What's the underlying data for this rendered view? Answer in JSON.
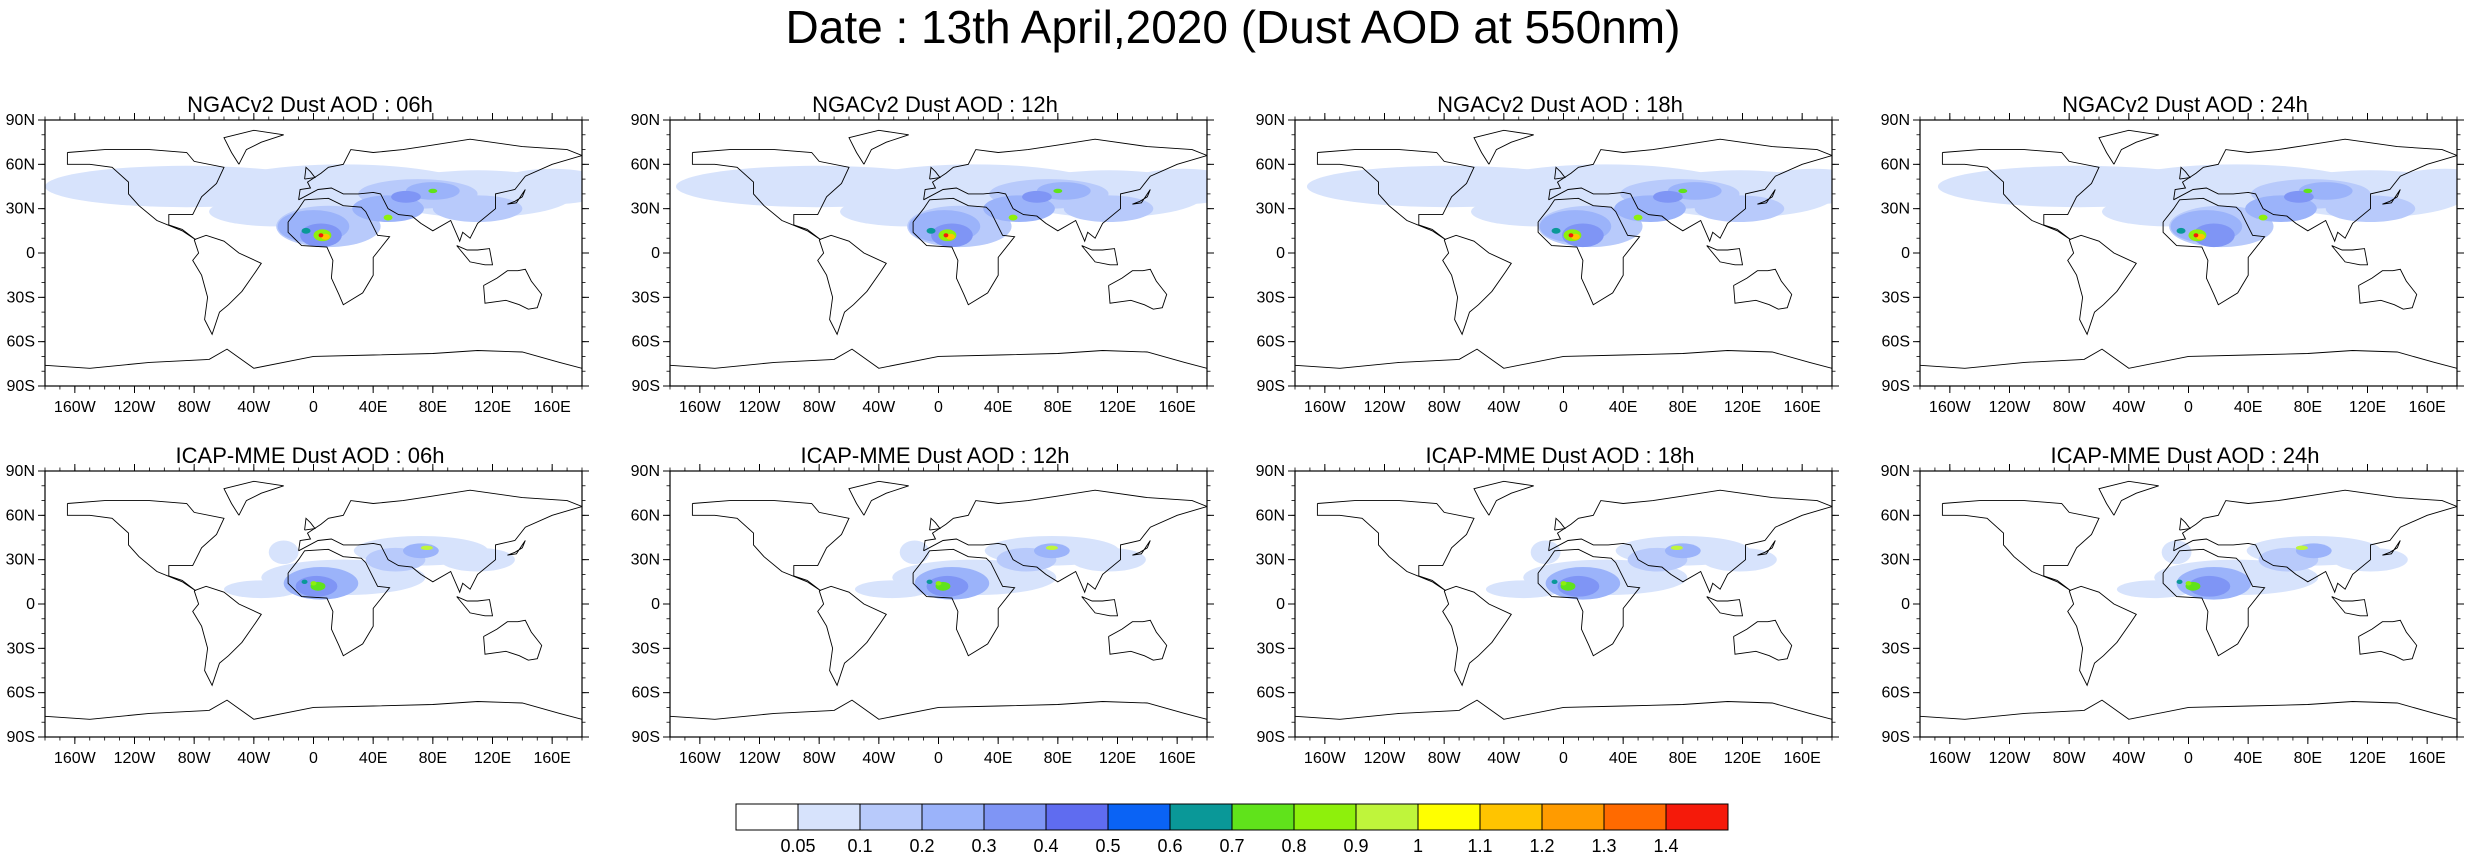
{
  "title": "Date : 13th April,2020 (Dust AOD at 550nm)",
  "chart_data": {
    "type": "heatmap",
    "title": "Date : 13th April,2020 (Dust AOD at 550nm)",
    "grid": false,
    "legend": "bottom-center colorbar",
    "xlim": [
      -180,
      180
    ],
    "ylim": [
      -90,
      90
    ],
    "x_tick_labels": [
      "160W",
      "120W",
      "80W",
      "40W",
      "0",
      "40E",
      "80E",
      "120E",
      "160E"
    ],
    "y_tick_labels": [
      "90N",
      "60N",
      "30N",
      "0",
      "30S",
      "60S",
      "90S"
    ],
    "colorbar": {
      "labels": [
        "0.05",
        "0.1",
        "0.2",
        "0.3",
        "0.4",
        "0.5",
        "0.6",
        "0.7",
        "0.8",
        "0.9",
        "1",
        "1.1",
        "1.2",
        "1.3",
        "1.4"
      ],
      "colors": [
        "#ffffff",
        "#d7e3fc",
        "#b8cafb",
        "#9bb3fa",
        "#7f95f5",
        "#5f6cf0",
        "#0a63f5",
        "#0a9898",
        "#60e31b",
        "#8ef00c",
        "#bff53b",
        "#ffff00",
        "#ffc400",
        "#ff9b00",
        "#ff6a00",
        "#f51a0a"
      ]
    },
    "panels": [
      {
        "title": "NGACv2 Dust AOD : 06h",
        "model": "NGACv2",
        "lead": "06h"
      },
      {
        "title": "NGACv2 Dust AOD : 12h",
        "model": "NGACv2",
        "lead": "12h"
      },
      {
        "title": "NGACv2 Dust AOD : 18h",
        "model": "NGACv2",
        "lead": "18h"
      },
      {
        "title": "NGACv2 Dust AOD : 24h",
        "model": "NGACv2",
        "lead": "24h"
      },
      {
        "title": "ICAP-MME Dust AOD : 06h",
        "model": "ICAP-MME",
        "lead": "06h"
      },
      {
        "title": "ICAP-MME Dust AOD : 12h",
        "model": "ICAP-MME",
        "lead": "12h"
      },
      {
        "title": "ICAP-MME Dust AOD : 18h",
        "model": "ICAP-MME",
        "lead": "18h"
      },
      {
        "title": "ICAP-MME Dust AOD : 24h",
        "model": "ICAP-MME",
        "lead": "24h"
      }
    ]
  }
}
